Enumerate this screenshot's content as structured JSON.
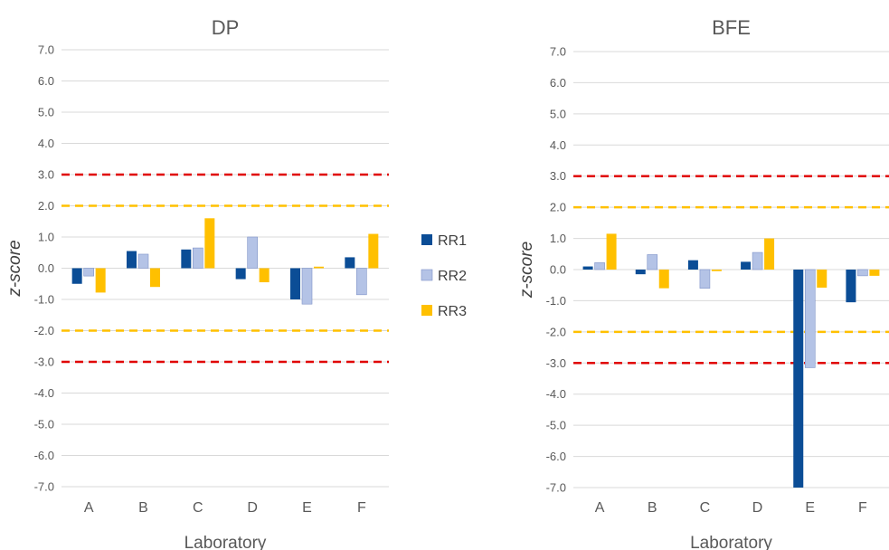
{
  "chart_data": [
    {
      "type": "bar",
      "title": "DP",
      "xlabel": "Laboratory",
      "ylabel": "z-score",
      "categories": [
        "A",
        "B",
        "C",
        "D",
        "E",
        "F"
      ],
      "series": [
        {
          "name": "RR1",
          "values": [
            -0.5,
            0.55,
            0.6,
            -0.35,
            -1.0,
            0.35
          ]
        },
        {
          "name": "RR2",
          "values": [
            -0.25,
            0.45,
            0.65,
            1.0,
            -1.15,
            -0.85
          ]
        },
        {
          "name": "RR3",
          "values": [
            -0.78,
            -0.6,
            1.6,
            -0.45,
            0.05,
            1.1
          ]
        }
      ],
      "ylim": [
        -7.0,
        7.0
      ],
      "yticks": [
        "7.0",
        "6.0",
        "5.0",
        "4.0",
        "3.0",
        "2.0",
        "1.0",
        "0.0",
        "-1.0",
        "-2.0",
        "-3.0",
        "-4.0",
        "-5.0",
        "-6.0",
        "-7.0"
      ],
      "reference_lines": [
        {
          "value": 3.0,
          "color": "#e00000"
        },
        {
          "value": 2.0,
          "color": "#ffc000"
        },
        {
          "value": -2.0,
          "color": "#ffc000"
        },
        {
          "value": -3.0,
          "color": "#e00000"
        }
      ],
      "grid": true
    },
    {
      "type": "bar",
      "title": "BFE",
      "xlabel": "Laboratory",
      "ylabel": "z-score",
      "categories": [
        "A",
        "B",
        "C",
        "D",
        "E",
        "F"
      ],
      "series": [
        {
          "name": "RR1",
          "values": [
            0.1,
            -0.15,
            0.3,
            0.25,
            -7.0,
            -1.05
          ]
        },
        {
          "name": "RR2",
          "values": [
            0.22,
            0.48,
            -0.6,
            0.55,
            -3.15,
            -0.2
          ]
        },
        {
          "name": "RR3",
          "values": [
            1.15,
            -0.6,
            -0.05,
            1.0,
            -0.58,
            -0.2
          ]
        }
      ],
      "ylim": [
        -7.0,
        7.0
      ],
      "yticks": [
        "7.0",
        "6.0",
        "5.0",
        "4.0",
        "3.0",
        "2.0",
        "1.0",
        "0.0",
        "-1.0",
        "-2.0",
        "-3.0",
        "-4.0",
        "-5.0",
        "-6.0",
        "-7.0"
      ],
      "reference_lines": [
        {
          "value": 3.0,
          "color": "#e00000"
        },
        {
          "value": 2.0,
          "color": "#ffc000"
        },
        {
          "value": -2.0,
          "color": "#ffc000"
        },
        {
          "value": -3.0,
          "color": "#e00000"
        }
      ],
      "grid": true
    }
  ],
  "legend": {
    "placement": "center",
    "entries": [
      {
        "name": "RR1",
        "color": "#0b4d96"
      },
      {
        "name": "RR2",
        "color": "#b4c3e6"
      },
      {
        "name": "RR3",
        "color": "#ffc000"
      }
    ]
  },
  "colors": {
    "RR1": "#0b4d96",
    "RR2": "#b4c3e6",
    "RR3": "#ffc000",
    "grid": "#d9d9d9"
  }
}
